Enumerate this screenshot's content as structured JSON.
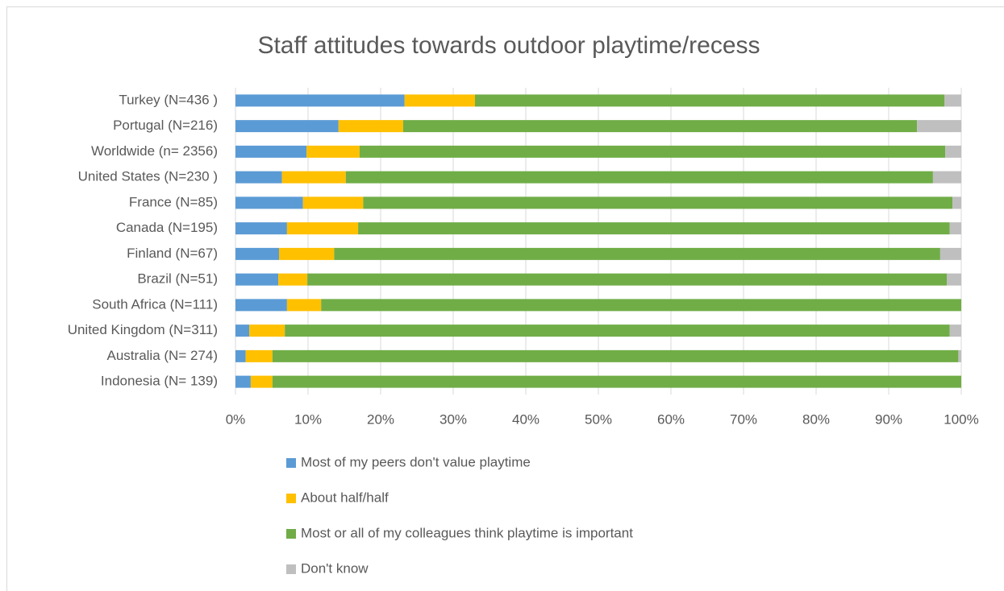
{
  "chart_data": {
    "type": "stacked-bar-horizontal",
    "title": "Staff attitudes towards outdoor playtime/recess",
    "categories": [
      "Turkey (N=436 )",
      "Portugal (N=216)",
      "Worldwide (n= 2356)",
      "United States (N=230 )",
      "France (N=85)",
      "Canada (N=195)",
      "Finland (N=67)",
      "Brazil (N=51)",
      "South Africa (N=111)",
      "United Kingdom (N=311)",
      "Australia (N= 274)",
      "Indonesia (N= 139)"
    ],
    "series": [
      {
        "name": "Most of my peers don't value playtime",
        "color": "#5b9bd5",
        "values": [
          23.3,
          14.2,
          9.8,
          6.4,
          9.3,
          7.1,
          6.0,
          5.9,
          7.1,
          1.9,
          1.4,
          2.1
        ]
      },
      {
        "name": "About half/half",
        "color": "#ffc000",
        "values": [
          9.7,
          8.9,
          7.3,
          8.8,
          8.3,
          9.8,
          7.6,
          4.0,
          4.7,
          4.9,
          3.7,
          3.0
        ]
      },
      {
        "name": "Most or all of my colleagues think playtime is important",
        "color": "#70ad47",
        "values": [
          64.7,
          70.8,
          80.7,
          80.9,
          81.2,
          81.5,
          83.5,
          88.1,
          88.2,
          91.6,
          94.5,
          94.9
        ]
      },
      {
        "name": "Don't know",
        "color": "#bfbfbf",
        "values": [
          2.3,
          6.1,
          2.2,
          3.9,
          1.2,
          1.6,
          2.9,
          2.0,
          0,
          1.6,
          0.4,
          0
        ]
      }
    ],
    "xlim": [
      0,
      100
    ],
    "xticks": [
      {
        "value": 0,
        "label": "0%"
      },
      {
        "value": 10,
        "label": "10%"
      },
      {
        "value": 20,
        "label": "20%"
      },
      {
        "value": 30,
        "label": "30%"
      },
      {
        "value": 40,
        "label": "40%"
      },
      {
        "value": 50,
        "label": "50%"
      },
      {
        "value": 60,
        "label": "60%"
      },
      {
        "value": 70,
        "label": "70%"
      },
      {
        "value": 80,
        "label": "80%"
      },
      {
        "value": 90,
        "label": "90%"
      },
      {
        "value": 100,
        "label": "100%"
      }
    ],
    "grid": true
  }
}
